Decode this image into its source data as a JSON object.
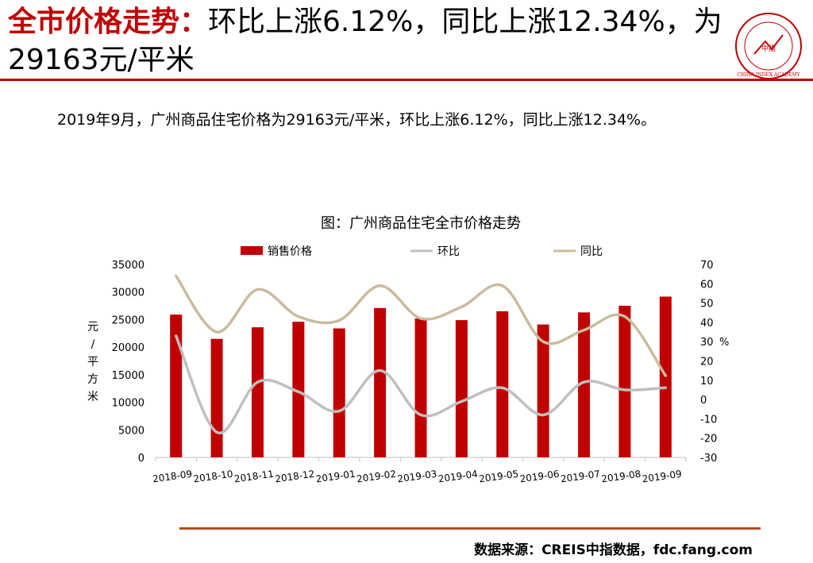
{
  "headline": {
    "accent": "全市价格走势：",
    "rest": "环比上涨6.12%，同比上涨12.34%，为29163元/平米"
  },
  "logo": {
    "text": "CHINA INDEX ACADEMY",
    "mark": "中指",
    "color": "#c00000"
  },
  "subtitle": "2019年9月，广州商品住宅价格为29163元/平米，环比上涨6.12%，同比上涨12.34%。",
  "chart_data": {
    "type": "bar+line",
    "title": "图：广州商品住宅全市价格走势",
    "categories": [
      "2018-09",
      "2018-10",
      "2018-11",
      "2018-12",
      "2019-01",
      "2019-02",
      "2019-03",
      "2019-04",
      "2019-05",
      "2019-06",
      "2019-07",
      "2019-08",
      "2019-09"
    ],
    "series": [
      {
        "name": "销售价格",
        "kind": "bar",
        "axis": "left",
        "color": "#c00000",
        "values": [
          25900,
          21500,
          23600,
          24600,
          23400,
          27100,
          25200,
          24900,
          26500,
          24100,
          26300,
          27500,
          29163
        ]
      },
      {
        "name": "环比",
        "kind": "line",
        "axis": "right",
        "color": "#bfbfbf",
        "values": [
          33,
          -17,
          9,
          4,
          -6,
          15,
          -8,
          -1,
          6,
          -8,
          9,
          5,
          6.12
        ]
      },
      {
        "name": "同比",
        "kind": "line",
        "axis": "right",
        "color": "#c9bc9c",
        "values": [
          64,
          35,
          57,
          43,
          41,
          59,
          42,
          48,
          59,
          30,
          36,
          43,
          12.34
        ]
      }
    ],
    "ylabel_left": "元/平方米",
    "ylabel_right": "%",
    "ylim_left": [
      0,
      35000
    ],
    "yticks_left": [
      "35000",
      "30000",
      "25000",
      "20000",
      "15000",
      "10000",
      "5000",
      "0"
    ],
    "ylim_right": [
      -30,
      70
    ],
    "yticks_right": [
      "70",
      "60",
      "50",
      "40",
      "30",
      "20",
      "10",
      "0",
      "-10",
      "-20",
      "-30"
    ],
    "legend": "top"
  },
  "source": "数据来源：CREIS中指数据，fdc.fang.com"
}
